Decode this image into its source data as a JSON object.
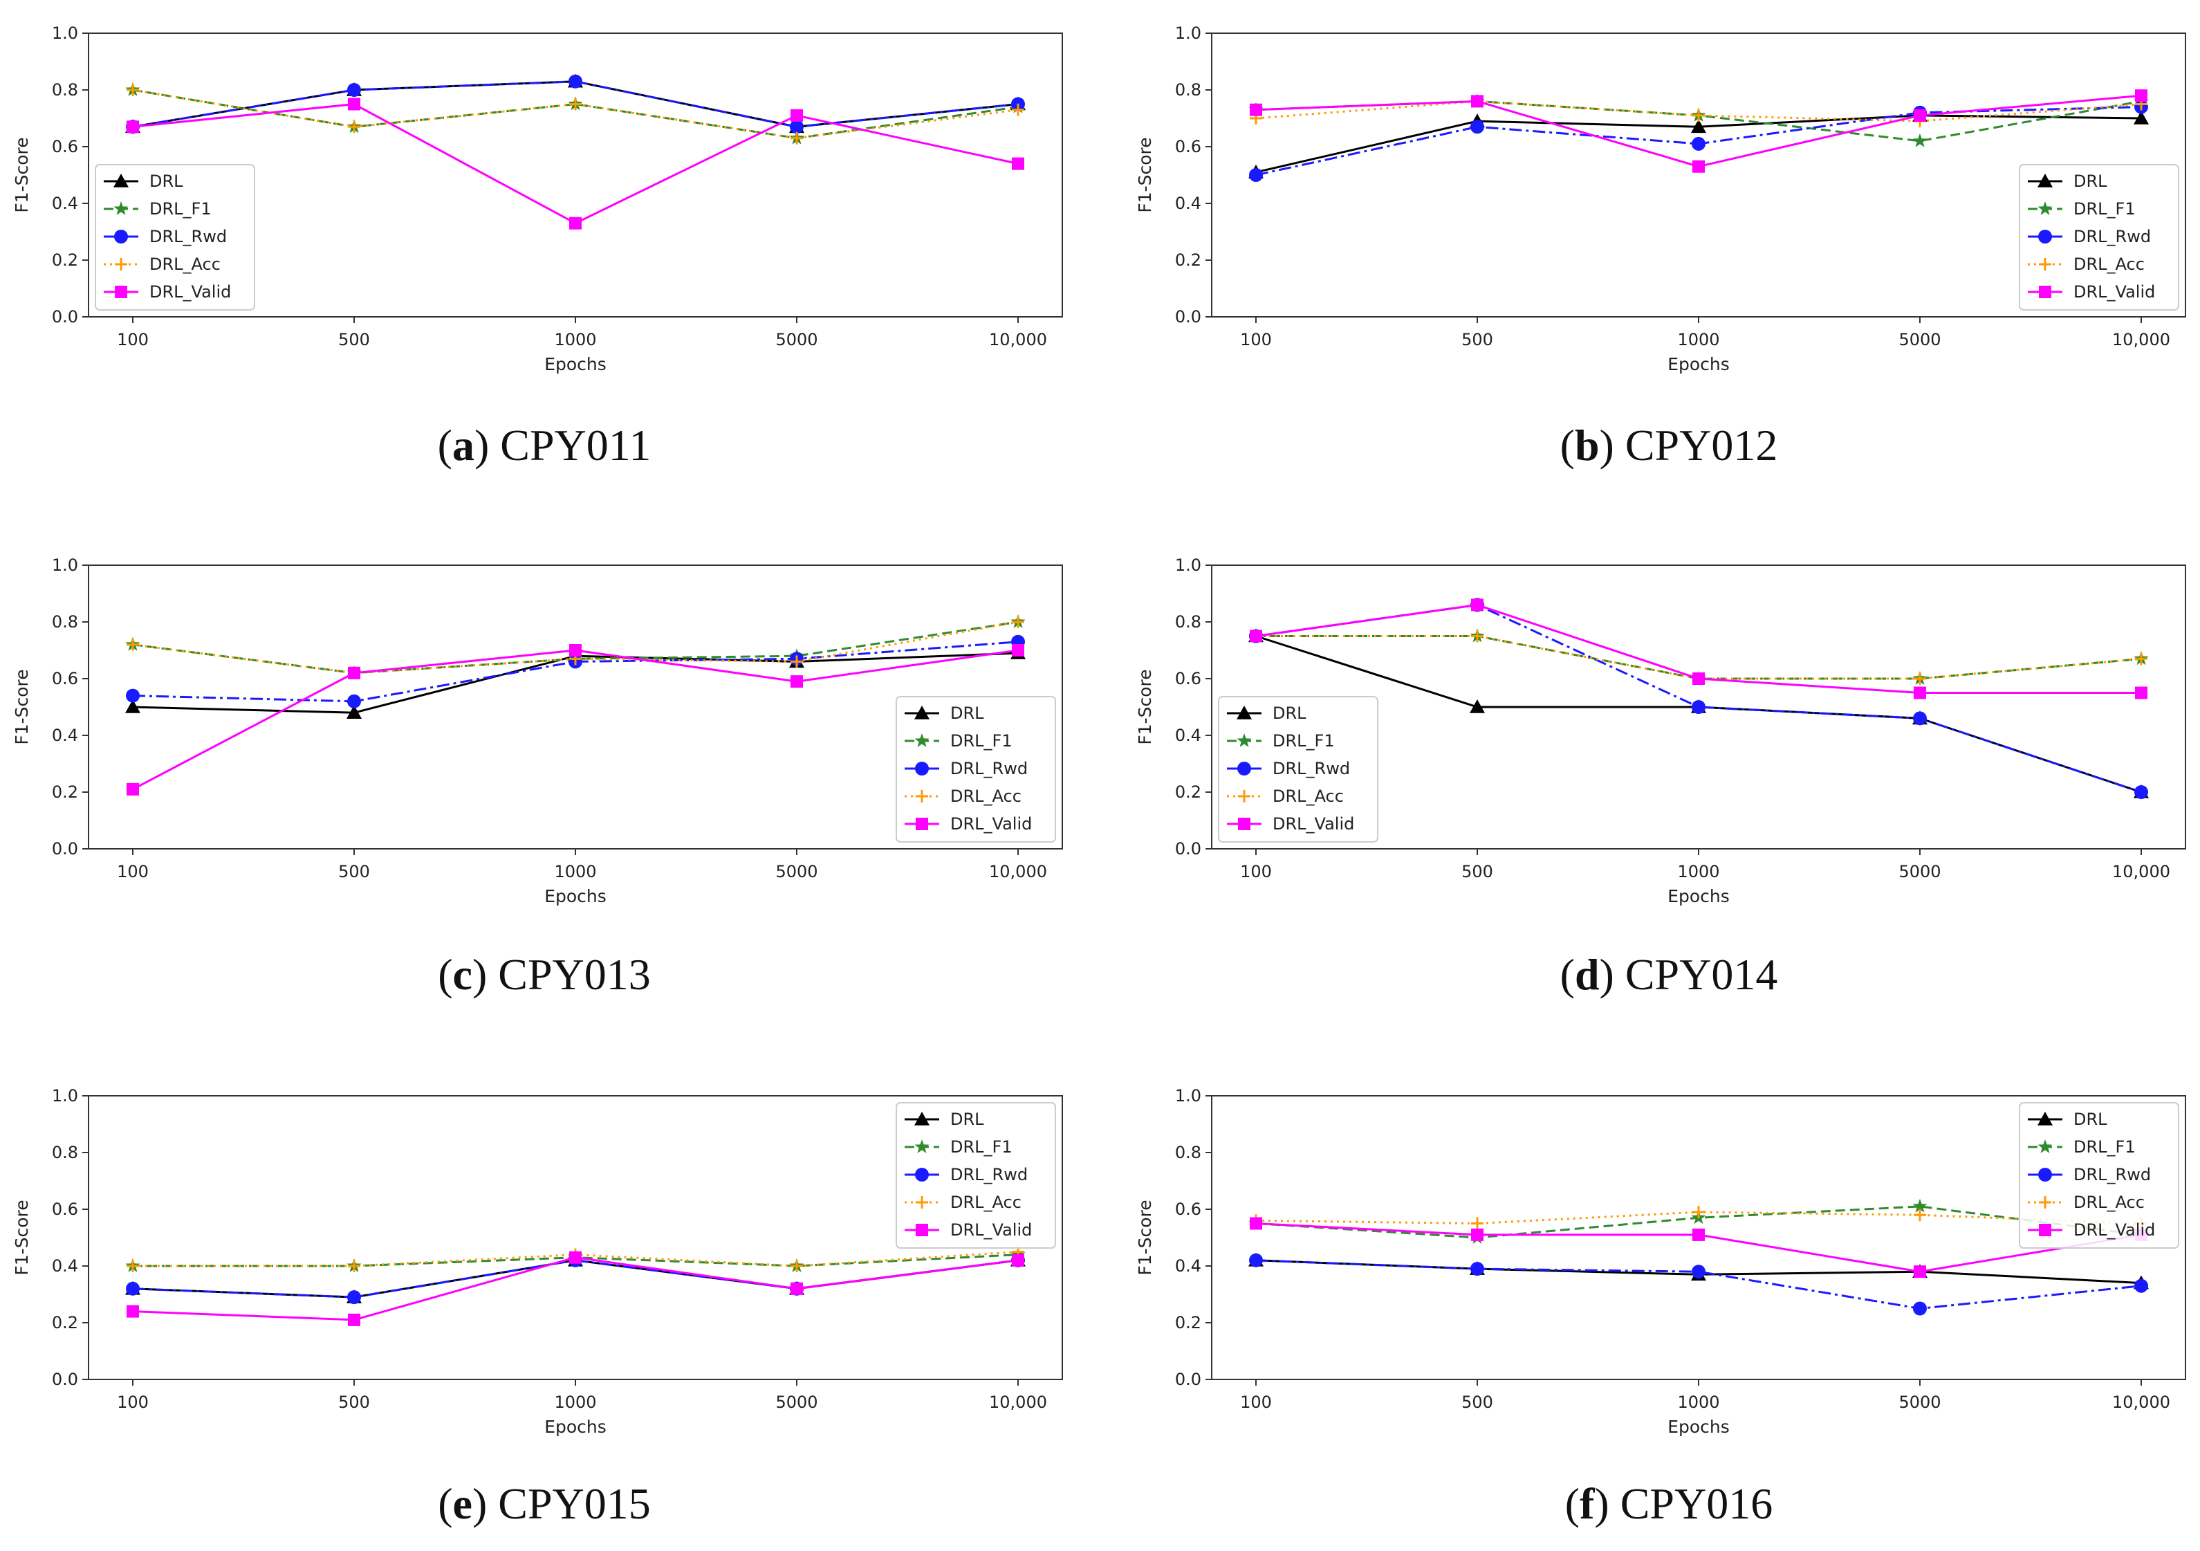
{
  "styles": {
    "DRL": {
      "color": "#000000",
      "dash": "",
      "marker": "triangle"
    },
    "DRL_F1": {
      "color": "#2e8b2e",
      "dash": "14,7",
      "marker": "star"
    },
    "DRL_Rwd": {
      "color": "#1a1aff",
      "dash": "18,6,4,6",
      "marker": "circle"
    },
    "DRL_Acc": {
      "color": "#ff9900",
      "dash": "3,6",
      "marker": "plus"
    },
    "DRL_Valid": {
      "color": "#ff00ff",
      "dash": "",
      "marker": "square"
    }
  },
  "chart_data": [
    {
      "type": "line",
      "caption_letter": "a",
      "caption_name": "CPY011",
      "xlabel": "Epochs",
      "ylabel": "F1-Score",
      "ylim": [
        0,
        1.0
      ],
      "yticks": [
        "0.0",
        "0.2",
        "0.4",
        "0.6",
        "0.8",
        "1.0"
      ],
      "categories": [
        "100",
        "500",
        "1000",
        "5000",
        "10,000"
      ],
      "legend_position": "lower-left",
      "series": [
        {
          "name": "DRL",
          "values": [
            0.67,
            0.8,
            0.83,
            0.67,
            0.75
          ]
        },
        {
          "name": "DRL_F1",
          "values": [
            0.8,
            0.67,
            0.75,
            0.63,
            0.74
          ]
        },
        {
          "name": "DRL_Rwd",
          "values": [
            0.67,
            0.8,
            0.83,
            0.67,
            0.75
          ]
        },
        {
          "name": "DRL_Acc",
          "values": [
            0.8,
            0.67,
            0.75,
            0.63,
            0.73
          ]
        },
        {
          "name": "DRL_Valid",
          "values": [
            0.67,
            0.75,
            0.33,
            0.71,
            0.54
          ]
        }
      ]
    },
    {
      "type": "line",
      "caption_letter": "b",
      "caption_name": "CPY012",
      "xlabel": "Epochs",
      "ylabel": "F1-Score",
      "ylim": [
        0,
        1.0
      ],
      "yticks": [
        "0.0",
        "0.2",
        "0.4",
        "0.6",
        "0.8",
        "1.0"
      ],
      "categories": [
        "100",
        "500",
        "1000",
        "5000",
        "10,000"
      ],
      "legend_position": "lower-right",
      "series": [
        {
          "name": "DRL",
          "values": [
            0.51,
            0.69,
            0.67,
            0.71,
            0.7
          ]
        },
        {
          "name": "DRL_F1",
          "values": [
            0.73,
            0.76,
            0.71,
            0.62,
            0.76
          ]
        },
        {
          "name": "DRL_Rwd",
          "values": [
            0.5,
            0.67,
            0.61,
            0.72,
            0.74
          ]
        },
        {
          "name": "DRL_Acc",
          "values": [
            0.7,
            0.76,
            0.71,
            0.69,
            0.75
          ]
        },
        {
          "name": "DRL_Valid",
          "values": [
            0.73,
            0.76,
            0.53,
            0.71,
            0.78
          ]
        }
      ]
    },
    {
      "type": "line",
      "caption_letter": "c",
      "caption_name": "CPY013",
      "xlabel": "Epochs",
      "ylabel": "F1-Score",
      "ylim": [
        0,
        1.0
      ],
      "yticks": [
        "0.0",
        "0.2",
        "0.4",
        "0.6",
        "0.8",
        "1.0"
      ],
      "categories": [
        "100",
        "500",
        "1000",
        "5000",
        "10,000"
      ],
      "legend_position": "lower-right",
      "series": [
        {
          "name": "DRL",
          "values": [
            0.5,
            0.48,
            0.68,
            0.66,
            0.69
          ]
        },
        {
          "name": "DRL_F1",
          "values": [
            0.72,
            0.62,
            0.67,
            0.68,
            0.8
          ]
        },
        {
          "name": "DRL_Rwd",
          "values": [
            0.54,
            0.52,
            0.66,
            0.67,
            0.73
          ]
        },
        {
          "name": "DRL_Acc",
          "values": [
            0.72,
            0.62,
            0.67,
            0.66,
            0.8
          ]
        },
        {
          "name": "DRL_Valid",
          "values": [
            0.21,
            0.62,
            0.7,
            0.59,
            0.7
          ]
        }
      ]
    },
    {
      "type": "line",
      "caption_letter": "d",
      "caption_name": "CPY014",
      "xlabel": "Epochs",
      "ylabel": "F1-Score",
      "ylim": [
        0,
        1.0
      ],
      "yticks": [
        "0.0",
        "0.2",
        "0.4",
        "0.6",
        "0.8",
        "1.0"
      ],
      "categories": [
        "100",
        "500",
        "1000",
        "5000",
        "10,000"
      ],
      "legend_position": "lower-left",
      "series": [
        {
          "name": "DRL",
          "values": [
            0.75,
            0.5,
            0.5,
            0.46,
            0.2
          ]
        },
        {
          "name": "DRL_F1",
          "values": [
            0.75,
            0.75,
            0.6,
            0.6,
            0.67
          ]
        },
        {
          "name": "DRL_Rwd",
          "values": [
            0.75,
            0.86,
            0.5,
            0.46,
            0.2
          ]
        },
        {
          "name": "DRL_Acc",
          "values": [
            0.75,
            0.75,
            0.6,
            0.6,
            0.67
          ]
        },
        {
          "name": "DRL_Valid",
          "values": [
            0.75,
            0.86,
            0.6,
            0.55,
            0.55
          ]
        }
      ]
    },
    {
      "type": "line",
      "caption_letter": "e",
      "caption_name": "CPY015",
      "xlabel": "Epochs",
      "ylabel": "F1-Score",
      "ylim": [
        0,
        1.0
      ],
      "yticks": [
        "0.0",
        "0.2",
        "0.4",
        "0.6",
        "0.8",
        "1.0"
      ],
      "categories": [
        "100",
        "500",
        "1000",
        "5000",
        "10,000"
      ],
      "legend_position": "upper-right",
      "series": [
        {
          "name": "DRL",
          "values": [
            0.32,
            0.29,
            0.42,
            0.32,
            0.42
          ]
        },
        {
          "name": "DRL_F1",
          "values": [
            0.4,
            0.4,
            0.43,
            0.4,
            0.44
          ]
        },
        {
          "name": "DRL_Rwd",
          "values": [
            0.32,
            0.29,
            0.42,
            0.32,
            0.42
          ]
        },
        {
          "name": "DRL_Acc",
          "values": [
            0.4,
            0.4,
            0.44,
            0.4,
            0.45
          ]
        },
        {
          "name": "DRL_Valid",
          "values": [
            0.24,
            0.21,
            0.43,
            0.32,
            0.42
          ]
        }
      ]
    },
    {
      "type": "line",
      "caption_letter": "f",
      "caption_name": "CPY016",
      "xlabel": "Epochs",
      "ylabel": "F1-Score",
      "ylim": [
        0,
        1.0
      ],
      "yticks": [
        "0.0",
        "0.2",
        "0.4",
        "0.6",
        "0.8",
        "1.0"
      ],
      "categories": [
        "100",
        "500",
        "1000",
        "5000",
        "10,000"
      ],
      "legend_position": "upper-right",
      "series": [
        {
          "name": "DRL",
          "values": [
            0.42,
            0.39,
            0.37,
            0.38,
            0.34
          ]
        },
        {
          "name": "DRL_F1",
          "values": [
            0.55,
            0.5,
            0.57,
            0.61,
            0.51
          ]
        },
        {
          "name": "DRL_Rwd",
          "values": [
            0.42,
            0.39,
            0.38,
            0.25,
            0.33
          ]
        },
        {
          "name": "DRL_Acc",
          "values": [
            0.56,
            0.55,
            0.59,
            0.58,
            0.55
          ]
        },
        {
          "name": "DRL_Valid",
          "values": [
            0.55,
            0.51,
            0.51,
            0.38,
            0.51
          ]
        }
      ]
    }
  ]
}
